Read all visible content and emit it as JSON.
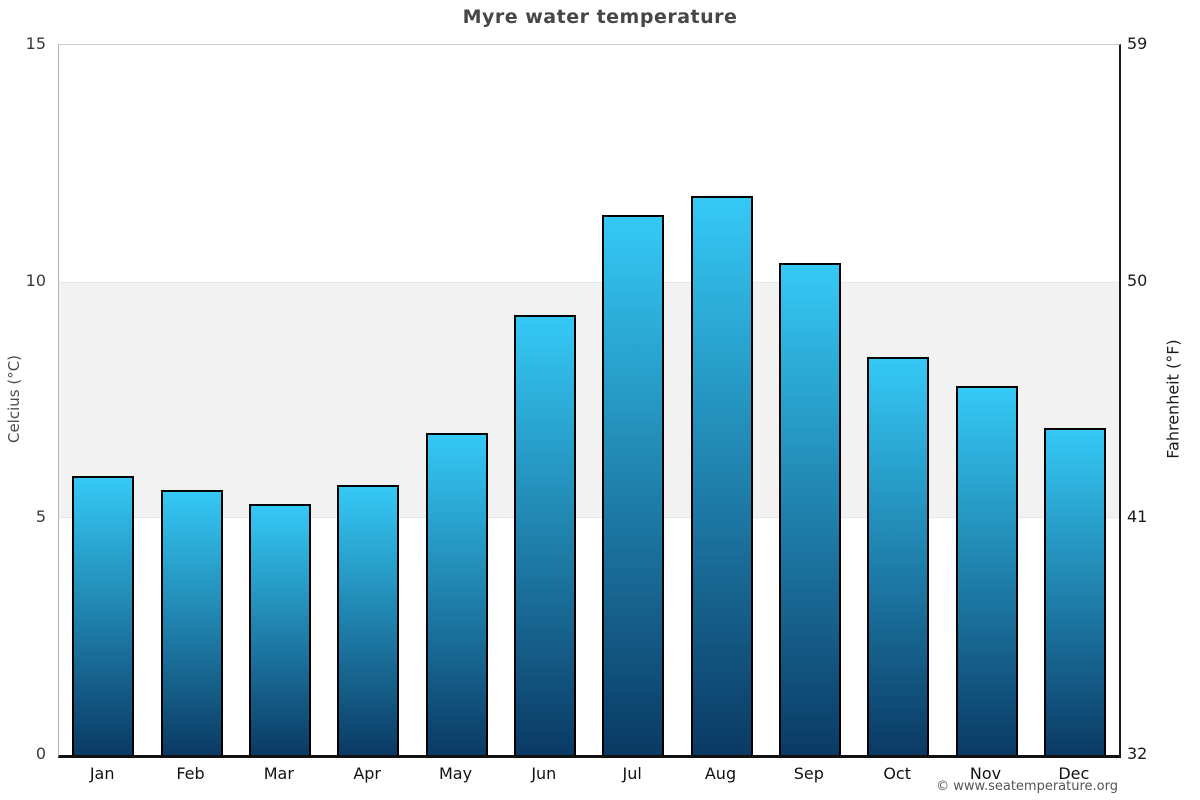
{
  "copyright": "© www.seatemperature.org",
  "colors": {
    "bar_top": "#35c9f6",
    "bar_bottom": "#0a3a64",
    "bar_border": "#000000",
    "band": "#f2f2f2",
    "axis_left": "#b3b3b3",
    "axis_right": "#1a1a1a",
    "axis_bottom": "#111111",
    "gridline_top": "#cccccc",
    "title_text": "#474747",
    "copyright_text": "#555555"
  },
  "chart_data": {
    "type": "bar",
    "title": "Myre water temperature",
    "categories": [
      "Jan",
      "Feb",
      "Mar",
      "Apr",
      "May",
      "Jun",
      "Jul",
      "Aug",
      "Sep",
      "Oct",
      "Nov",
      "Dec"
    ],
    "values": [
      5.9,
      5.6,
      5.3,
      5.7,
      6.8,
      9.3,
      11.4,
      11.8,
      10.4,
      8.4,
      7.8,
      6.9
    ],
    "xlabel": "",
    "ylabel": "Celcius (°C)",
    "ylabel_right": "Fahrenheit (°F)",
    "ylim": [
      0,
      15
    ],
    "yticks_left": [
      0,
      5,
      10,
      15
    ],
    "yticks_right": [
      32,
      41,
      50,
      59
    ],
    "highlight_band_celsius": [
      5,
      10
    ],
    "grid": false,
    "legend": "none"
  }
}
